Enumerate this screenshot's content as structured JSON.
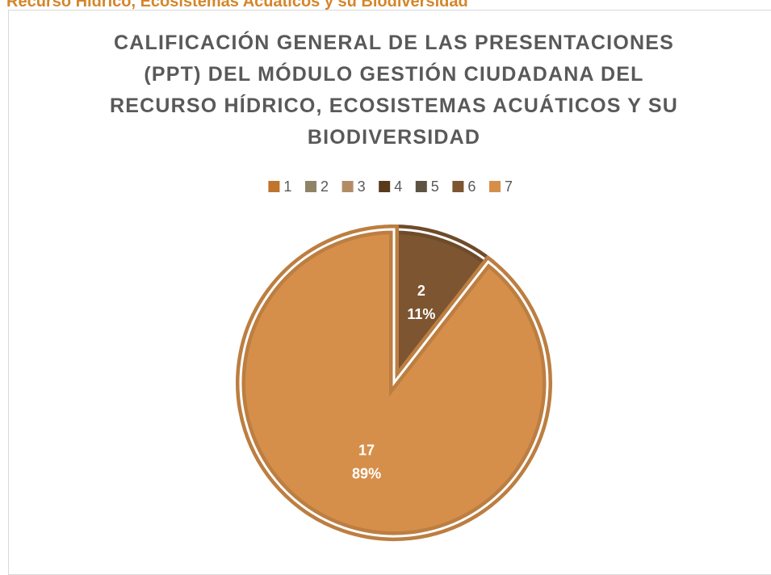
{
  "header": {
    "text": "Recurso Hídrico, Ecosistemas Acuáticos y su Biodiversidad"
  },
  "chart_data": {
    "type": "pie",
    "title": "CALIFICACIÓN GENERAL DE LAS PRESENTACIONES (PPT) DEL MÓDULO GESTIÓN CIUDADANA DEL RECURSO HÍDRICO, ECOSISTEMAS ACUÁTICOS Y SU BIODIVERSIDAD",
    "categories": [
      "1",
      "2",
      "3",
      "4",
      "5",
      "6",
      "7"
    ],
    "values": [
      0,
      0,
      0,
      0,
      0,
      2,
      17
    ],
    "percent_labels": [
      null,
      null,
      null,
      null,
      null,
      "11%",
      "89%"
    ],
    "colors": [
      "#c0742c",
      "#8f8466",
      "#b38c66",
      "#5a3a1c",
      "#5e5242",
      "#7d5530",
      "#d68f4a"
    ],
    "legend": "top"
  }
}
